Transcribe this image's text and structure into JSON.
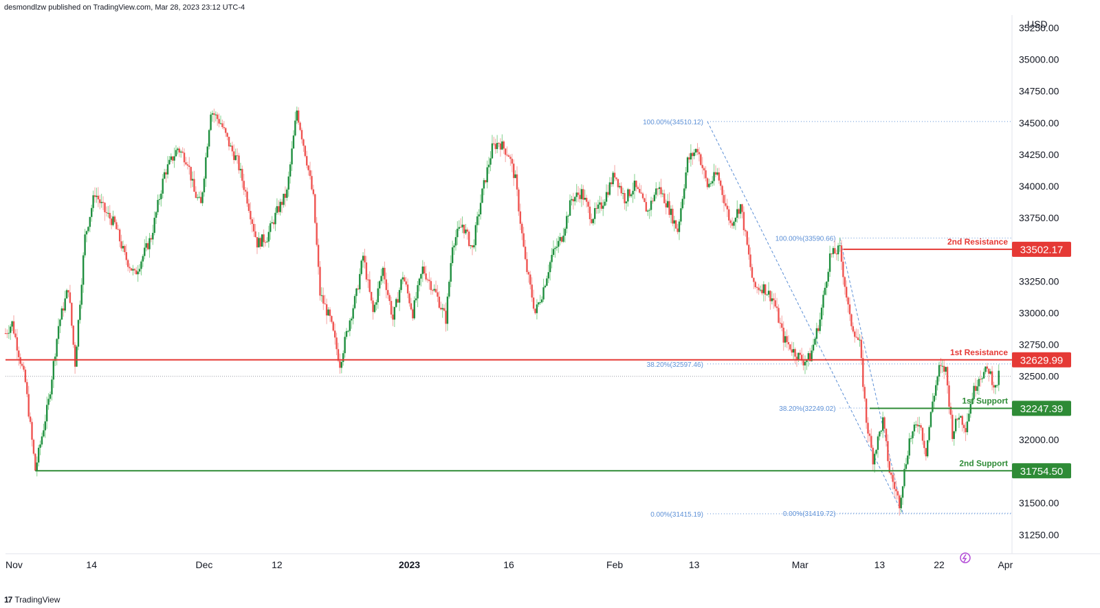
{
  "header": {
    "text": "desmondlzw published on TradingView.com, Mar 28, 2023 23:12 UTC-4"
  },
  "footer": {
    "logo": "17",
    "text": "TradingView"
  },
  "colors": {
    "up": "#26a69a",
    "upDark": "#1e8e3e",
    "down": "#ef5350",
    "resistance": "#e53935",
    "support": "#2e8b36",
    "fib": "#5b8fd6"
  },
  "chart_data": {
    "type": "candlestick",
    "currency": "USD",
    "ylim": [
      31100,
      35350
    ],
    "yticks": [
      "35250.00",
      "35000.00",
      "34750.00",
      "34500.00",
      "34250.00",
      "34000.00",
      "33750.00",
      "33500.00",
      "33250.00",
      "33000.00",
      "32750.00",
      "32500.00",
      "32250.00",
      "32000.00",
      "31750.00",
      "31500.00",
      "31250.00"
    ],
    "xticks": [
      {
        "label": "Nov",
        "day": 0,
        "bold": false
      },
      {
        "label": "14",
        "day": 13,
        "bold": false
      },
      {
        "label": "Dec",
        "day": 30,
        "bold": false
      },
      {
        "label": "12",
        "day": 41,
        "bold": false
      },
      {
        "label": "2023",
        "day": 61,
        "bold": true
      },
      {
        "label": "16",
        "day": 76,
        "bold": false
      },
      {
        "label": "Feb",
        "day": 92,
        "bold": false
      },
      {
        "label": "13",
        "day": 104,
        "bold": false
      },
      {
        "label": "Mar",
        "day": 120,
        "bold": false
      },
      {
        "label": "13",
        "day": 132,
        "bold": false
      },
      {
        "label": "22",
        "day": 141,
        "bold": false
      },
      {
        "label": "Apr",
        "day": 151,
        "bold": false
      }
    ],
    "xdays": [
      0,
      152
    ],
    "last_price": 32500,
    "levels": [
      {
        "name": "2nd Resistance",
        "price": 33502.17,
        "tag": "33502.17",
        "type": "resistance",
        "from_day": 126.5
      },
      {
        "name": "1st Resistance",
        "price": 32629.99,
        "tag": "32629.99",
        "type": "resistance",
        "from_day": 0
      },
      {
        "name": "1st Support",
        "price": 32247.39,
        "tag": "32247.39",
        "type": "support",
        "from_day": 130.5
      },
      {
        "name": "2nd Support",
        "price": 31754.5,
        "tag": "31754.50",
        "type": "support",
        "from_day": 4.5
      }
    ],
    "fib_labels": [
      {
        "text": "100.00%(34510.12)",
        "price": 34510.12,
        "day_start": 106.0,
        "day_end": 153
      },
      {
        "text": "38.20%(32597.46)",
        "price": 32597.46,
        "day_start": 106.0,
        "day_end": 153
      },
      {
        "text": "0.00%(31415.19)",
        "price": 31415.19,
        "day_start": 106.0,
        "day_end": 153
      },
      {
        "text": "100.00%(33590.66)",
        "price": 33590.66,
        "day_start": 126.0,
        "day_end": 153
      },
      {
        "text": "38.20%(32249.02)",
        "price": 32249.02,
        "day_start": 126.0,
        "day_end": 153
      },
      {
        "text": "0.00%(31419.72)",
        "price": 31419.72,
        "day_start": 126.0,
        "day_end": 153
      }
    ],
    "fib_trends": [
      {
        "from_day": 106.0,
        "from_price": 34510.12,
        "to_day": 135.5,
        "to_price": 31415.19
      },
      {
        "from_day": 126.0,
        "from_price": 33590.66,
        "to_day": 135.5,
        "to_price": 31419.72
      }
    ],
    "anchors": [
      [
        0,
        32840
      ],
      [
        1,
        32920
      ],
      [
        3,
        32450
      ],
      [
        4.5,
        31760
      ],
      [
        6.5,
        32300
      ],
      [
        8,
        32900
      ],
      [
        9.5,
        33200
      ],
      [
        10.5,
        32600
      ],
      [
        12,
        33600
      ],
      [
        13.5,
        33950
      ],
      [
        15,
        33800
      ],
      [
        16.5,
        33700
      ],
      [
        18,
        33450
      ],
      [
        19.5,
        33300
      ],
      [
        22,
        33600
      ],
      [
        24,
        34100
      ],
      [
        26,
        34300
      ],
      [
        27.5,
        34200
      ],
      [
        28.5,
        33950
      ],
      [
        29.5,
        33850
      ],
      [
        31,
        34600
      ],
      [
        32.5,
        34500
      ],
      [
        34,
        34300
      ],
      [
        35,
        34200
      ],
      [
        36.5,
        33900
      ],
      [
        38,
        33550
      ],
      [
        39.5,
        33600
      ],
      [
        41,
        33800
      ],
      [
        42.5,
        33950
      ],
      [
        44,
        34600
      ],
      [
        45.5,
        34200
      ],
      [
        46.5,
        33900
      ],
      [
        47.5,
        33150
      ],
      [
        49,
        32950
      ],
      [
        50.5,
        32600
      ],
      [
        52,
        32950
      ],
      [
        53,
        33150
      ],
      [
        54,
        33450
      ],
      [
        55.5,
        33000
      ],
      [
        57,
        33350
      ],
      [
        58.5,
        32950
      ],
      [
        60,
        33300
      ],
      [
        61.5,
        33000
      ],
      [
        63,
        33350
      ],
      [
        65,
        33150
      ],
      [
        66.5,
        32950
      ],
      [
        67.5,
        33550
      ],
      [
        69,
        33700
      ],
      [
        70.5,
        33500
      ],
      [
        72,
        33950
      ],
      [
        73.5,
        34300
      ],
      [
        74.5,
        34350
      ],
      [
        76,
        34250
      ],
      [
        77,
        34050
      ],
      [
        78.5,
        33400
      ],
      [
        80,
        33000
      ],
      [
        81,
        33150
      ],
      [
        82.5,
        33450
      ],
      [
        84,
        33600
      ],
      [
        85.5,
        33900
      ],
      [
        87,
        33950
      ],
      [
        88.5,
        33750
      ],
      [
        90,
        33850
      ],
      [
        92,
        34100
      ],
      [
        93.5,
        33900
      ],
      [
        95,
        34000
      ],
      [
        97,
        33800
      ],
      [
        98.5,
        34000
      ],
      [
        100,
        33850
      ],
      [
        101.5,
        33650
      ],
      [
        103,
        34200
      ],
      [
        104.5,
        34300
      ],
      [
        106,
        34000
      ],
      [
        107.5,
        34100
      ],
      [
        108.5,
        33900
      ],
      [
        109.5,
        33700
      ],
      [
        111,
        33850
      ],
      [
        113,
        33200
      ],
      [
        114.5,
        33200
      ],
      [
        116,
        33100
      ],
      [
        117.5,
        32800
      ],
      [
        119,
        32700
      ],
      [
        120.5,
        32620
      ],
      [
        121.5,
        32650
      ],
      [
        123,
        32950
      ],
      [
        124.5,
        33450
      ],
      [
        126,
        33500
      ],
      [
        127.5,
        32950
      ],
      [
        129,
        32750
      ],
      [
        130,
        32150
      ],
      [
        131,
        31850
      ],
      [
        132.5,
        32150
      ],
      [
        133.5,
        31750
      ],
      [
        135,
        31500
      ],
      [
        136.5,
        32000
      ],
      [
        138,
        32150
      ],
      [
        139,
        31900
      ],
      [
        140,
        32300
      ],
      [
        141,
        32560
      ],
      [
        142,
        32550
      ],
      [
        143,
        32050
      ],
      [
        144,
        32200
      ],
      [
        145,
        32100
      ],
      [
        146,
        32350
      ],
      [
        147,
        32500
      ],
      [
        148.5,
        32550
      ],
      [
        149.5,
        32400
      ],
      [
        150,
        32500
      ]
    ]
  }
}
